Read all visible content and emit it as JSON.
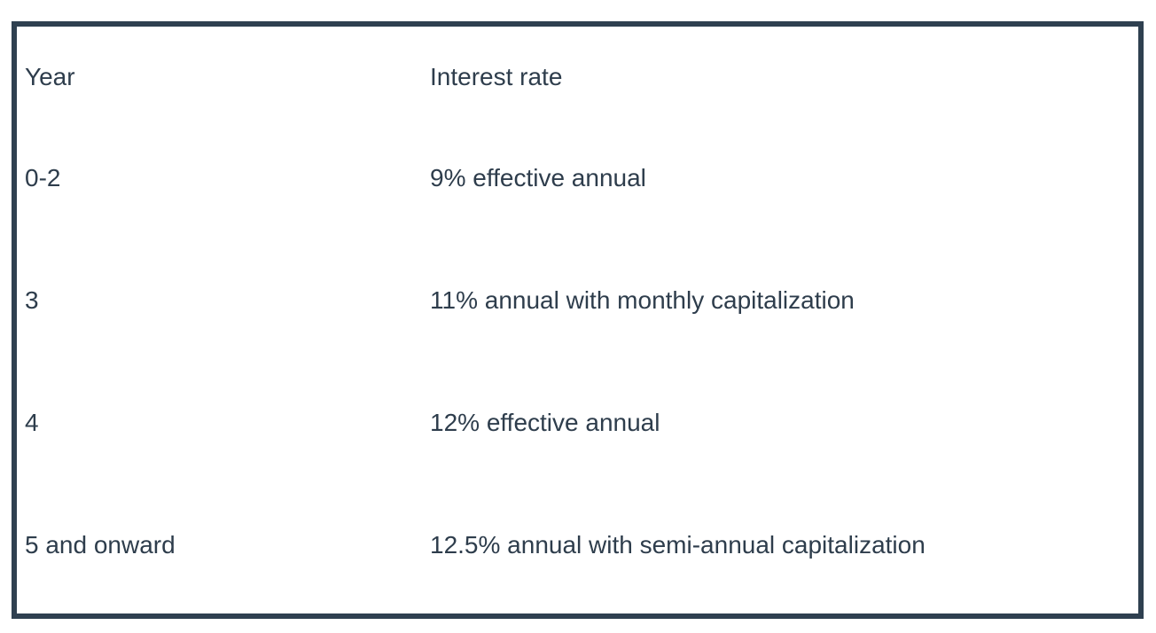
{
  "page": {
    "background_color": "#ffffff"
  },
  "table": {
    "border_color": "#2f4050",
    "text_color": "#2e3d4c",
    "headers": {
      "year": "Year",
      "rate": "Interest rate"
    },
    "rows": [
      {
        "year": "0-2",
        "rate": "9% effective annual"
      },
      {
        "year": "3",
        "rate": "11% annual with monthly capitalization"
      },
      {
        "year": "4",
        "rate": "12% effective annual"
      },
      {
        "year": "5 and onward",
        "rate": "12.5% annual with semi-annual capitalization"
      }
    ]
  }
}
